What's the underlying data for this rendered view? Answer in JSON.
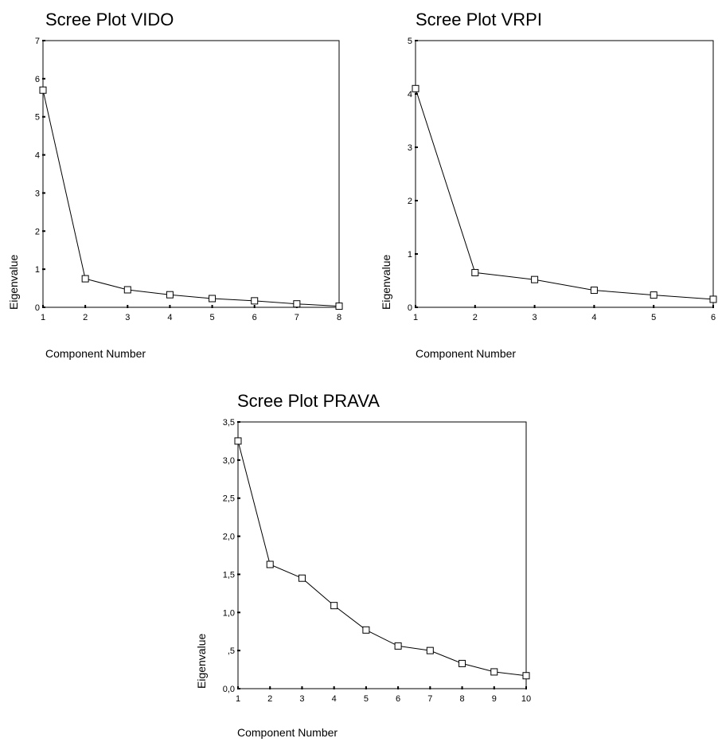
{
  "chart_data": [
    {
      "type": "line",
      "title": "Scree Plot VIDO",
      "xlabel": "Component Number",
      "ylabel": "Eigenvalue",
      "x": [
        1,
        2,
        3,
        4,
        5,
        6,
        7,
        8
      ],
      "y": [
        5.7,
        0.75,
        0.46,
        0.33,
        0.23,
        0.17,
        0.09,
        0.03
      ],
      "xlim": [
        1,
        8
      ],
      "ylim": [
        0,
        7
      ],
      "yticks": [
        "0",
        "1",
        "2",
        "3",
        "4",
        "5",
        "6",
        "7"
      ],
      "xticks": [
        "1",
        "2",
        "3",
        "4",
        "5",
        "6",
        "7",
        "8"
      ],
      "marker": "hollow-square",
      "grid": false
    },
    {
      "type": "line",
      "title": "Scree Plot VRPI",
      "xlabel": "Component Number",
      "ylabel": "Eigenvalue",
      "x": [
        1,
        2,
        3,
        4,
        5,
        6
      ],
      "y": [
        4.1,
        0.65,
        0.52,
        0.32,
        0.23,
        0.15
      ],
      "xlim": [
        1,
        6
      ],
      "ylim": [
        0,
        5
      ],
      "yticks": [
        "0",
        "1",
        "2",
        "3",
        "4",
        "5"
      ],
      "xticks": [
        "1",
        "2",
        "3",
        "4",
        "5",
        "6"
      ],
      "marker": "hollow-square",
      "grid": false
    },
    {
      "type": "line",
      "title": "Scree Plot PRAVA",
      "xlabel": "Component Number",
      "ylabel": "Eigenvalue",
      "x": [
        1,
        2,
        3,
        4,
        5,
        6,
        7,
        8,
        9,
        10
      ],
      "y": [
        3.25,
        1.63,
        1.45,
        1.09,
        0.77,
        0.56,
        0.5,
        0.33,
        0.22,
        0.17
      ],
      "xlim": [
        1,
        10
      ],
      "ylim": [
        0,
        3.5
      ],
      "yticks": [
        "0,0",
        ",5",
        "1,0",
        "1,5",
        "2,0",
        "2,5",
        "3,0",
        "3,5"
      ],
      "xticks": [
        "1",
        "2",
        "3",
        "4",
        "5",
        "6",
        "7",
        "8",
        "9",
        "10"
      ],
      "marker": "hollow-square",
      "grid": false
    }
  ]
}
